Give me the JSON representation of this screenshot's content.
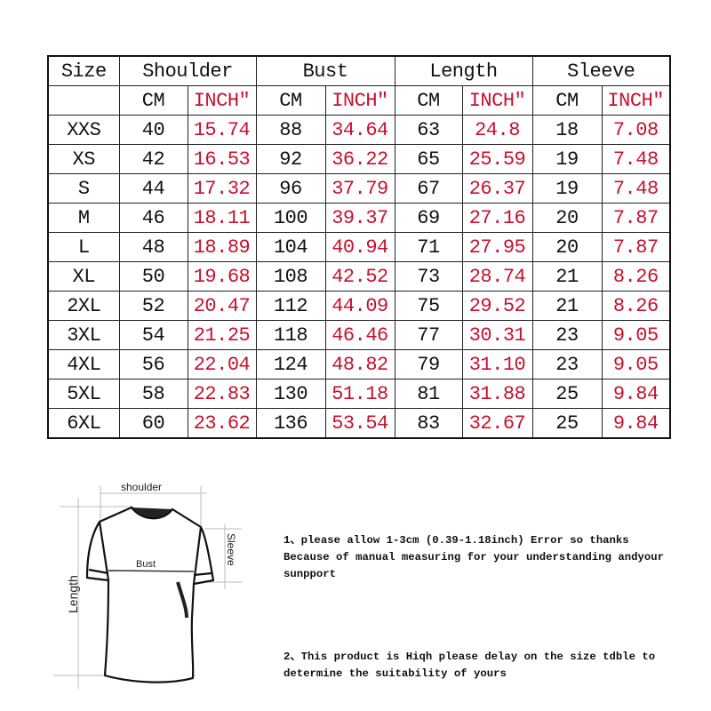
{
  "table": {
    "headers": [
      "Size",
      "Shoulder",
      "Bust",
      "Length",
      "Sleeve"
    ],
    "units": [
      "CM",
      "INCH″",
      "CM",
      "INCH″",
      "CM",
      "INCH″",
      "CM",
      "INCH″"
    ],
    "rows": [
      [
        "XXS",
        "40",
        "15.74",
        "88",
        "34.64",
        "63",
        "24.8",
        "18",
        "7.08"
      ],
      [
        "XS",
        "42",
        "16.53",
        "92",
        "36.22",
        "65",
        "25.59",
        "19",
        "7.48"
      ],
      [
        "S",
        "44",
        "17.32",
        "96",
        "37.79",
        "67",
        "26.37",
        "19",
        "7.48"
      ],
      [
        "M",
        "46",
        "18.11",
        "100",
        "39.37",
        "69",
        "27.16",
        "20",
        "7.87"
      ],
      [
        "L",
        "48",
        "18.89",
        "104",
        "40.94",
        "71",
        "27.95",
        "20",
        "7.87"
      ],
      [
        "XL",
        "50",
        "19.68",
        "108",
        "42.52",
        "73",
        "28.74",
        "21",
        "8.26"
      ],
      [
        "2XL",
        "52",
        "20.47",
        "112",
        "44.09",
        "75",
        "29.52",
        "21",
        "8.26"
      ],
      [
        "3XL",
        "54",
        "21.25",
        "118",
        "46.46",
        "77",
        "30.31",
        "23",
        "9.05"
      ],
      [
        "4XL",
        "56",
        "22.04",
        "124",
        "48.82",
        "79",
        "31.10",
        "23",
        "9.05"
      ],
      [
        "5XL",
        "58",
        "22.83",
        "130",
        "51.18",
        "81",
        "31.88",
        "25",
        "9.84"
      ],
      [
        "6XL",
        "60",
        "23.62",
        "136",
        "53.54",
        "83",
        "32.67",
        "25",
        "9.84"
      ]
    ]
  },
  "diagram": {
    "shoulder": "shoulder",
    "bust": "Bust",
    "sleeve": "Sleeve",
    "length": "Length"
  },
  "notes": {
    "note1": "1、please allow 1-3cm (0.39-1.18inch) Error so thanks\nBecause of manual measuring for your understanding andyour\nsunpport",
    "note2": "2、This product is Hiqh please delay on the size tdble to\ndetermine the suitability of yours"
  },
  "colors": {
    "inch": "#c8102e",
    "cm": "#111111",
    "border": "#222222"
  }
}
